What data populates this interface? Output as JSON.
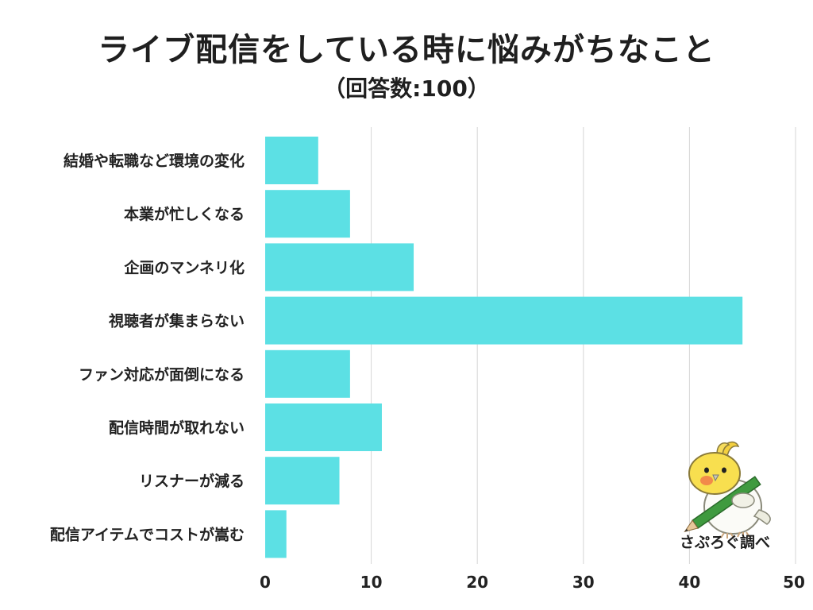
{
  "chart_data": {
    "type": "bar",
    "orientation": "horizontal",
    "title": "ライブ配信をしている時に悩みがちなこと",
    "subtitle": "（回答数:100）",
    "categories": [
      "結婚や転職など環境の変化",
      "本業が忙しくなる",
      "企画のマンネリ化",
      "視聴者が集まらない",
      "ファン対応が面倒になる",
      "配信時間が取れない",
      "リスナーが減る",
      "配信アイテムでコストが嵩む"
    ],
    "values": [
      5,
      8,
      14,
      45,
      8,
      11,
      7,
      2
    ],
    "xlim": [
      0,
      50
    ],
    "xticks": [
      "0",
      "10",
      "20",
      "30",
      "40",
      "50"
    ],
    "grid": true,
    "bar_color": "#5ce0e4",
    "grid_color": "#d6d6d6"
  },
  "watermark": {
    "text": "さぷろぐ調べ",
    "icon": "cockatiel-with-pencil-icon"
  }
}
